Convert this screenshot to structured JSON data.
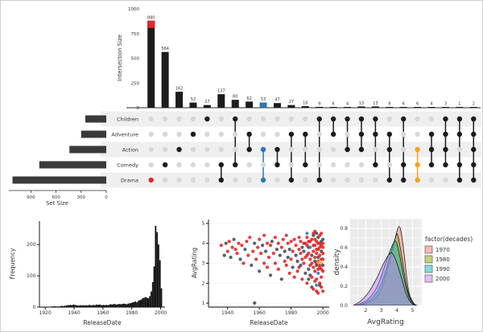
{
  "chart_data": [
    {
      "name": "upset-intersection-size",
      "type": "bar",
      "ylabel": "Intersection Size",
      "yticks": [
        0,
        250,
        500,
        750,
        1000
      ],
      "ylim": [
        0,
        1000
      ],
      "intersections": [
        {
          "sets": [
            "Drama"
          ],
          "size": 880,
          "highlight": "red"
        },
        {
          "sets": [
            "Comedy"
          ],
          "size": 564
        },
        {
          "sets": [
            "Action"
          ],
          "size": 162
        },
        {
          "sets": [
            "Adventure"
          ],
          "size": 52
        },
        {
          "sets": [
            "Children"
          ],
          "size": 27
        },
        {
          "sets": [
            "Comedy",
            "Drama"
          ],
          "size": 137
        },
        {
          "sets": [
            "Children",
            "Comedy"
          ],
          "size": 80
        },
        {
          "sets": [
            "Action",
            "Adventure"
          ],
          "size": 62
        },
        {
          "sets": [
            "Action",
            "Drama"
          ],
          "size": 53,
          "highlight": "blue"
        },
        {
          "sets": [
            "Action",
            "Comedy"
          ],
          "size": 47
        },
        {
          "sets": [
            "Adventure",
            "Drama"
          ],
          "size": 27
        },
        {
          "sets": [
            "Adventure",
            "Comedy"
          ],
          "size": 16
        },
        {
          "sets": [
            "Children",
            "Drama"
          ],
          "size": 9
        },
        {
          "sets": [
            "Adventure",
            "Children"
          ],
          "size": 6
        },
        {
          "sets": [
            "Action",
            "Children"
          ],
          "size": 4
        },
        {
          "sets": [
            "Action",
            "Adventure",
            "Children"
          ],
          "size": 13
        },
        {
          "sets": [
            "Adventure",
            "Children",
            "Comedy"
          ],
          "size": 13
        },
        {
          "sets": [
            "Action",
            "Adventure",
            "Drama"
          ],
          "size": 8
        },
        {
          "sets": [
            "Children",
            "Comedy",
            "Drama"
          ],
          "size": 6
        },
        {
          "sets": [
            "Action",
            "Comedy",
            "Drama"
          ],
          "size": 6,
          "highlight": "orange"
        },
        {
          "sets": [
            "Action",
            "Adventure",
            "Comedy"
          ],
          "size": 4
        },
        {
          "sets": [
            "Action",
            "Adventure",
            "Children",
            "Comedy"
          ],
          "size": 3
        },
        {
          "sets": [
            "Adventure",
            "Children",
            "Comedy",
            "Drama"
          ],
          "size": 1
        },
        {
          "sets": [
            "Action",
            "Adventure",
            "Children",
            "Comedy",
            "Drama"
          ],
          "size": 2
        }
      ]
    },
    {
      "name": "upset-set-size",
      "type": "bar",
      "xlabel": "Set Size",
      "xticks": [
        900,
        600,
        300,
        0
      ],
      "sets": [
        {
          "name": "Children",
          "size": 250
        },
        {
          "name": "Adventure",
          "size": 300
        },
        {
          "name": "Action",
          "size": 440
        },
        {
          "name": "Comedy",
          "size": 800
        },
        {
          "name": "Drama",
          "size": 1120
        }
      ]
    },
    {
      "name": "release-date-histogram",
      "type": "histogram",
      "xlabel": "ReleaseDate",
      "ylabel": "Frequency",
      "xticks": [
        1920,
        1940,
        1960,
        1980,
        2000
      ],
      "yticks": [
        0,
        100,
        200
      ],
      "bin_start": 1919,
      "bin_width": 1,
      "counts": [
        1,
        1,
        0,
        1,
        1,
        2,
        2,
        3,
        2,
        2,
        2,
        3,
        4,
        3,
        4,
        5,
        6,
        6,
        7,
        6,
        8,
        7,
        6,
        5,
        5,
        6,
        5,
        6,
        5,
        6,
        5,
        7,
        6,
        5,
        7,
        6,
        8,
        7,
        8,
        7,
        6,
        7,
        6,
        7,
        6,
        8,
        9,
        8,
        10,
        9,
        8,
        9,
        10,
        9,
        10,
        11,
        10,
        9,
        11,
        12,
        13,
        15,
        16,
        18,
        15,
        20,
        22,
        24,
        28,
        30,
        32,
        30,
        28,
        35,
        50,
        80,
        130,
        260,
        240,
        200,
        150,
        60
      ]
    },
    {
      "name": "avg-rating-scatter",
      "type": "scatter",
      "xlabel": "ReleaseDate",
      "ylabel": "AvgRating",
      "xticks": [
        1940,
        1960,
        1980,
        2000
      ],
      "yticks": [
        1,
        2,
        3,
        4,
        5
      ],
      "series_colors": [
        "#e31a1c",
        "#37474f",
        "#3a6fc4",
        "#f5a623"
      ],
      "series_names": [
        "red",
        "dark",
        "blue",
        "orange"
      ],
      "points": [
        [
          1936,
          3.9,
          0
        ],
        [
          1938,
          3.4,
          1
        ],
        [
          1939,
          4.0,
          1
        ],
        [
          1940,
          3.6,
          0
        ],
        [
          1941,
          4.1,
          0
        ],
        [
          1942,
          3.3,
          1
        ],
        [
          1943,
          3.8,
          0
        ],
        [
          1944,
          4.2,
          1
        ],
        [
          1945,
          3.7,
          0
        ],
        [
          1946,
          3.5,
          0
        ],
        [
          1947,
          4.0,
          0
        ],
        [
          1948,
          3.2,
          1
        ],
        [
          1949,
          3.9,
          0
        ],
        [
          1950,
          3.0,
          0
        ],
        [
          1951,
          3.7,
          1
        ],
        [
          1952,
          4.1,
          0
        ],
        [
          1953,
          3.4,
          0
        ],
        [
          1954,
          4.3,
          0
        ],
        [
          1955,
          2.9,
          1
        ],
        [
          1956,
          3.6,
          0
        ],
        [
          1957,
          1.0,
          1
        ],
        [
          1957,
          4.0,
          1
        ],
        [
          1958,
          3.2,
          0
        ],
        [
          1959,
          3.8,
          0
        ],
        [
          1960,
          4.2,
          0
        ],
        [
          1960,
          2.6,
          1
        ],
        [
          1961,
          3.5,
          0
        ],
        [
          1962,
          3.9,
          1
        ],
        [
          1963,
          3.0,
          0
        ],
        [
          1963,
          4.4,
          0
        ],
        [
          1964,
          3.6,
          1
        ],
        [
          1965,
          2.8,
          0
        ],
        [
          1965,
          4.0,
          0
        ],
        [
          1966,
          3.3,
          0
        ],
        [
          1967,
          3.9,
          0
        ],
        [
          1967,
          2.4,
          1
        ],
        [
          1968,
          4.1,
          1
        ],
        [
          1969,
          3.5,
          0
        ],
        [
          1970,
          3.0,
          0
        ],
        [
          1970,
          4.3,
          0
        ],
        [
          1971,
          3.7,
          1
        ],
        [
          1972,
          2.7,
          0
        ],
        [
          1972,
          4.0,
          0
        ],
        [
          1973,
          3.4,
          1
        ],
        [
          1974,
          3.8,
          0
        ],
        [
          1974,
          2.2,
          1
        ],
        [
          1975,
          4.2,
          0
        ],
        [
          1976,
          3.1,
          0
        ],
        [
          1976,
          3.6,
          1
        ],
        [
          1977,
          4.4,
          0
        ],
        [
          1977,
          2.9,
          0
        ],
        [
          1978,
          3.3,
          1
        ],
        [
          1978,
          4.0,
          0
        ],
        [
          1979,
          2.5,
          0
        ],
        [
          1979,
          3.7,
          1
        ],
        [
          1980,
          3.2,
          0
        ],
        [
          1980,
          4.1,
          0
        ],
        [
          1981,
          2.8,
          1
        ],
        [
          1981,
          3.6,
          0
        ],
        [
          1982,
          4.2,
          0
        ],
        [
          1982,
          2.3,
          0
        ],
        [
          1983,
          3.4,
          1
        ],
        [
          1983,
          3.9,
          0
        ],
        [
          1984,
          2.6,
          0
        ],
        [
          1984,
          3.1,
          1
        ],
        [
          1985,
          3.7,
          0
        ],
        [
          1985,
          4.3,
          0
        ],
        [
          1985,
          2.8,
          0
        ],
        [
          1986,
          2.9,
          1
        ],
        [
          1986,
          3.5,
          0
        ],
        [
          1986,
          4.1,
          0
        ],
        [
          1987,
          2.2,
          0
        ],
        [
          1987,
          3.8,
          1
        ],
        [
          1987,
          3.2,
          0
        ],
        [
          1988,
          3.0,
          0
        ],
        [
          1988,
          4.0,
          0
        ],
        [
          1988,
          3.6,
          1
        ],
        [
          1989,
          2.5,
          1
        ],
        [
          1989,
          3.3,
          0
        ],
        [
          1989,
          4.0,
          0
        ],
        [
          1990,
          3.9,
          0
        ],
        [
          1990,
          2.0,
          0
        ],
        [
          1990,
          3.4,
          0
        ],
        [
          1990,
          4.3,
          0
        ],
        [
          1990,
          4.5,
          2
        ],
        [
          1991,
          3.5,
          0
        ],
        [
          1991,
          2.7,
          1
        ],
        [
          1991,
          4.1,
          0
        ],
        [
          1991,
          3.8,
          1
        ],
        [
          1991,
          2.2,
          1
        ],
        [
          1992,
          3.2,
          0
        ],
        [
          1992,
          2.4,
          1
        ],
        [
          1992,
          3.8,
          2
        ],
        [
          1992,
          4.1,
          0
        ],
        [
          1992,
          2.9,
          0
        ],
        [
          1993,
          3.0,
          0
        ],
        [
          1993,
          4.2,
          0
        ],
        [
          1993,
          1.8,
          1
        ],
        [
          1993,
          3.4,
          1
        ],
        [
          1993,
          2.3,
          0
        ],
        [
          1994,
          3.6,
          0
        ],
        [
          1994,
          2.8,
          0
        ],
        [
          1994,
          4.4,
          1
        ],
        [
          1994,
          3.9,
          0
        ],
        [
          1994,
          1.7,
          0
        ],
        [
          1994,
          4.5,
          0
        ],
        [
          1995,
          3.3,
          0
        ],
        [
          1995,
          2.1,
          0
        ],
        [
          1995,
          3.9,
          0
        ],
        [
          1995,
          4.6,
          0
        ],
        [
          1995,
          2.6,
          0
        ],
        [
          1995,
          4.2,
          0
        ],
        [
          1995,
          3.1,
          1
        ],
        [
          1996,
          2.9,
          1
        ],
        [
          1996,
          3.5,
          0
        ],
        [
          1996,
          1.6,
          0
        ],
        [
          1996,
          4.1,
          0
        ],
        [
          1996,
          3.7,
          0
        ],
        [
          1996,
          2.2,
          0
        ],
        [
          1996,
          4.5,
          1
        ],
        [
          1996,
          3.0,
          0
        ],
        [
          1996,
          1.9,
          2
        ],
        [
          1997,
          3.1,
          0
        ],
        [
          1997,
          2.5,
          2
        ],
        [
          1997,
          3.7,
          0
        ],
        [
          1997,
          4.3,
          1
        ],
        [
          1997,
          4.0,
          0
        ],
        [
          1997,
          3.3,
          1
        ],
        [
          1997,
          1.5,
          0
        ],
        [
          1997,
          2.7,
          0
        ],
        [
          1997,
          3.05,
          3
        ],
        [
          1998,
          2.8,
          0
        ],
        [
          1998,
          3.4,
          0
        ],
        [
          1998,
          1.9,
          1
        ],
        [
          1998,
          4.0,
          0
        ],
        [
          1998,
          2.9,
          0
        ],
        [
          1998,
          3.8,
          0
        ],
        [
          1998,
          4.4,
          0
        ],
        [
          1998,
          2.0,
          0
        ],
        [
          1999,
          3.0,
          3
        ],
        [
          1999,
          2.3,
          0
        ],
        [
          1999,
          3.6,
          1
        ],
        [
          1999,
          4.5,
          0
        ],
        [
          1999,
          3.2,
          0
        ],
        [
          1999,
          4.1,
          1
        ],
        [
          1999,
          2.7,
          0
        ],
        [
          1999,
          1.8,
          0
        ],
        [
          1999,
          3.9,
          0
        ],
        [
          2000,
          3.2,
          0
        ],
        [
          2000,
          2.6,
          0
        ],
        [
          2000,
          3.8,
          0
        ],
        [
          2000,
          4.2,
          1
        ],
        [
          2000,
          3.5,
          0
        ],
        [
          2000,
          4.0,
          0
        ],
        [
          2000,
          2.9,
          1
        ],
        [
          2000,
          1.6,
          0
        ]
      ]
    },
    {
      "name": "avg-rating-density",
      "type": "area",
      "xlabel": "AvgRating",
      "ylabel": "density",
      "legend_title": "factor(decades)",
      "legend_position": "right",
      "xticks": [
        2,
        3,
        4,
        5
      ],
      "yticks": [
        0,
        0.2,
        0.4,
        0.6,
        0.8
      ],
      "series": [
        {
          "name": "1970",
          "fill": "#F8766D",
          "points": [
            [
              1.6,
              0
            ],
            [
              2.0,
              0.02
            ],
            [
              2.5,
              0.06
            ],
            [
              3.0,
              0.17
            ],
            [
              3.4,
              0.38
            ],
            [
              3.8,
              0.64
            ],
            [
              4.15,
              0.82
            ],
            [
              4.4,
              0.62
            ],
            [
              4.6,
              0.33
            ],
            [
              4.8,
              0.12
            ],
            [
              5.1,
              0.02
            ],
            [
              5.3,
              0
            ]
          ]
        },
        {
          "name": "1980",
          "fill": "#7CAE00",
          "points": [
            [
              1.5,
              0
            ],
            [
              2.0,
              0.03
            ],
            [
              2.5,
              0.09
            ],
            [
              3.0,
              0.22
            ],
            [
              3.5,
              0.48
            ],
            [
              3.9,
              0.7
            ],
            [
              4.05,
              0.73
            ],
            [
              4.3,
              0.52
            ],
            [
              4.6,
              0.22
            ],
            [
              4.9,
              0.06
            ],
            [
              5.2,
              0
            ]
          ]
        },
        {
          "name": "1990",
          "fill": "#00BFC4",
          "points": [
            [
              1.3,
              0
            ],
            [
              1.8,
              0.03
            ],
            [
              2.3,
              0.09
            ],
            [
              2.8,
              0.22
            ],
            [
              3.3,
              0.45
            ],
            [
              3.7,
              0.62
            ],
            [
              3.95,
              0.66
            ],
            [
              4.2,
              0.5
            ],
            [
              4.5,
              0.25
            ],
            [
              4.8,
              0.08
            ],
            [
              5.1,
              0.01
            ],
            [
              5.3,
              0
            ]
          ]
        },
        {
          "name": "2000",
          "fill": "#C77CFF",
          "points": [
            [
              1.2,
              0
            ],
            [
              1.7,
              0.05
            ],
            [
              2.2,
              0.14
            ],
            [
              2.7,
              0.28
            ],
            [
              3.1,
              0.42
            ],
            [
              3.5,
              0.53
            ],
            [
              3.7,
              0.54
            ],
            [
              4.0,
              0.44
            ],
            [
              4.3,
              0.28
            ],
            [
              4.6,
              0.12
            ],
            [
              4.9,
              0.03
            ],
            [
              5.2,
              0
            ]
          ]
        }
      ]
    }
  ]
}
